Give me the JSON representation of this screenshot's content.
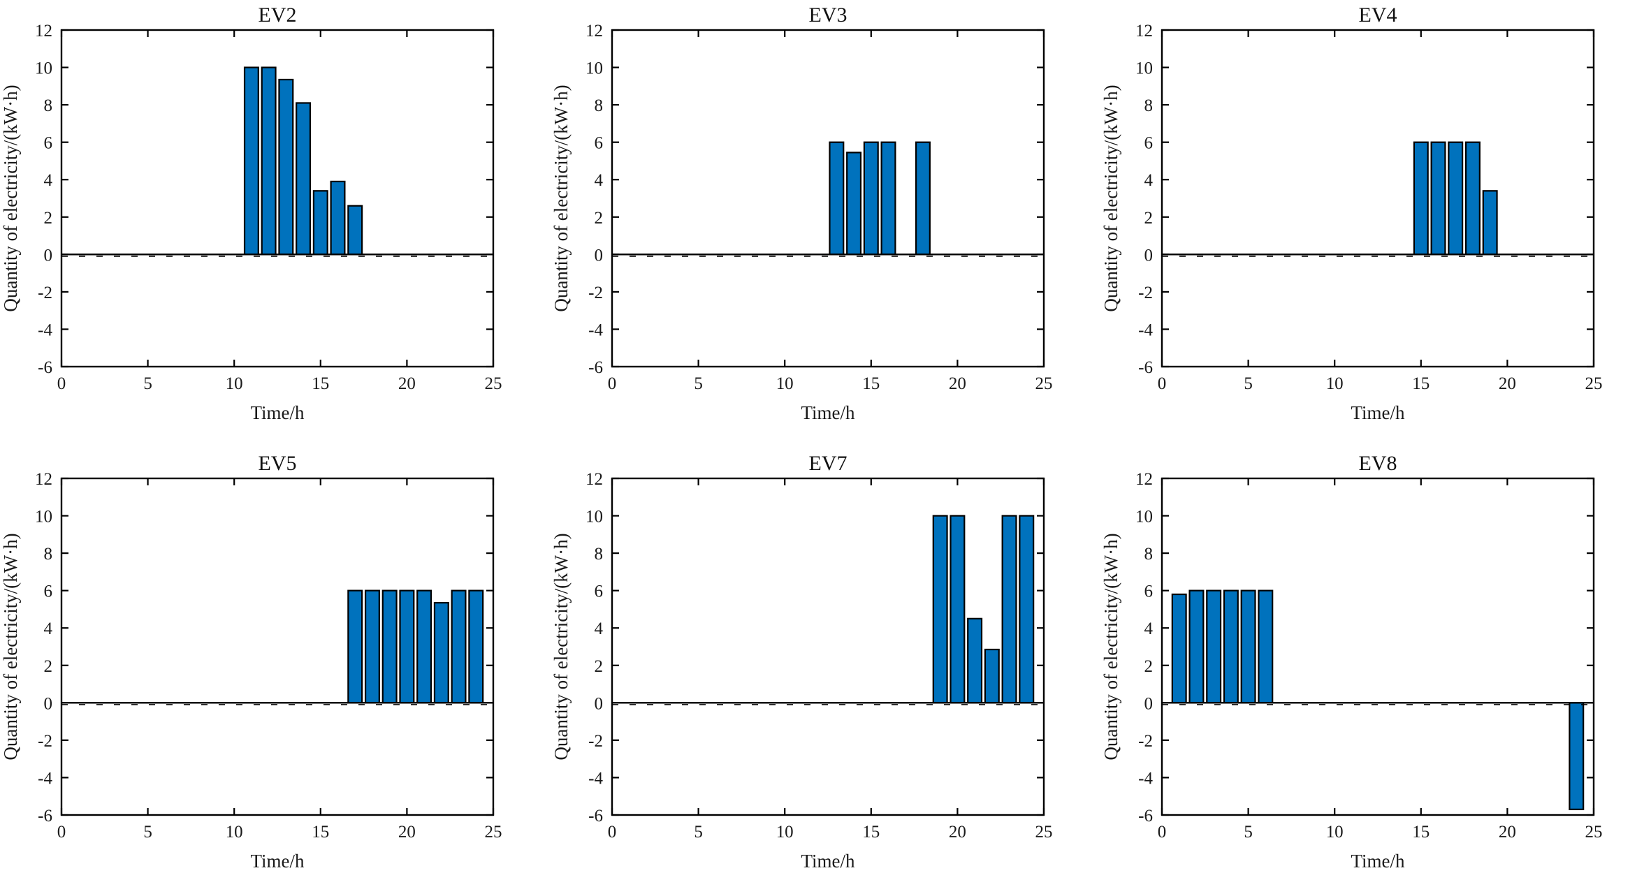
{
  "figure": {
    "background_color": "#ffffff",
    "axis_color": "#000000",
    "text_color": "#1a1a1a",
    "bar_fill_color": "#0072bd",
    "bar_edge_color": "#000000",
    "grid": false,
    "legend": "none",
    "box": true,
    "zero_line": true,
    "xlabel": "Time/h",
    "ylabel": "Quantity of electricity/(kW·h)",
    "x_ticks": [
      0,
      5,
      10,
      15,
      20,
      25
    ],
    "y_ticks": [
      -6,
      -4,
      -2,
      0,
      2,
      4,
      6,
      8,
      10,
      12
    ],
    "xlim": [
      0,
      25
    ],
    "ylim": [
      -6,
      12
    ]
  },
  "chart_data": [
    {
      "type": "bar",
      "title": "EV2",
      "xlabel": "Time/h",
      "ylabel": "Quantity of electricity/(kW·h)",
      "xlim": [
        0,
        25
      ],
      "ylim": [
        -6,
        12
      ],
      "bar_width": 0.8,
      "x": [
        11,
        12,
        13,
        14,
        15,
        16,
        17
      ],
      "values": [
        10,
        10,
        9.35,
        8.1,
        3.4,
        3.9,
        2.6
      ]
    },
    {
      "type": "bar",
      "title": "EV3",
      "xlabel": "Time/h",
      "ylabel": "Quantity of electricity/(kW·h)",
      "xlim": [
        0,
        25
      ],
      "ylim": [
        -6,
        12
      ],
      "bar_width": 0.8,
      "x": [
        13,
        14,
        15,
        16,
        18
      ],
      "values": [
        6,
        5.45,
        6,
        6,
        6
      ]
    },
    {
      "type": "bar",
      "title": "EV4",
      "xlabel": "Time/h",
      "ylabel": "Quantity of electricity/(kW·h)",
      "xlim": [
        0,
        25
      ],
      "ylim": [
        -6,
        12
      ],
      "bar_width": 0.8,
      "x": [
        15,
        16,
        17,
        18,
        19
      ],
      "values": [
        6,
        6,
        6,
        6,
        3.4
      ]
    },
    {
      "type": "bar",
      "title": "EV5",
      "xlabel": "Time/h",
      "ylabel": "Quantity of electricity/(kW·h)",
      "xlim": [
        0,
        25
      ],
      "ylim": [
        -6,
        12
      ],
      "bar_width": 0.8,
      "x": [
        17,
        18,
        19,
        20,
        21,
        22,
        23,
        24
      ],
      "values": [
        6,
        6,
        6,
        6,
        6,
        5.35,
        6,
        6
      ]
    },
    {
      "type": "bar",
      "title": "EV7",
      "xlabel": "Time/h",
      "ylabel": "Quantity of electricity/(kW·h)",
      "xlim": [
        0,
        25
      ],
      "ylim": [
        -6,
        12
      ],
      "bar_width": 0.8,
      "x": [
        19,
        20,
        21,
        22,
        23,
        24
      ],
      "values": [
        10,
        10,
        4.5,
        2.85,
        10,
        10
      ]
    },
    {
      "type": "bar",
      "title": "EV8",
      "xlabel": "Time/h",
      "ylabel": "Quantity of electricity/(kW·h)",
      "xlim": [
        0,
        25
      ],
      "ylim": [
        -6,
        12
      ],
      "bar_width": 0.8,
      "x": [
        1,
        2,
        3,
        4,
        5,
        6,
        24
      ],
      "values": [
        5.8,
        6,
        6,
        6,
        6,
        6,
        -5.7
      ]
    }
  ]
}
